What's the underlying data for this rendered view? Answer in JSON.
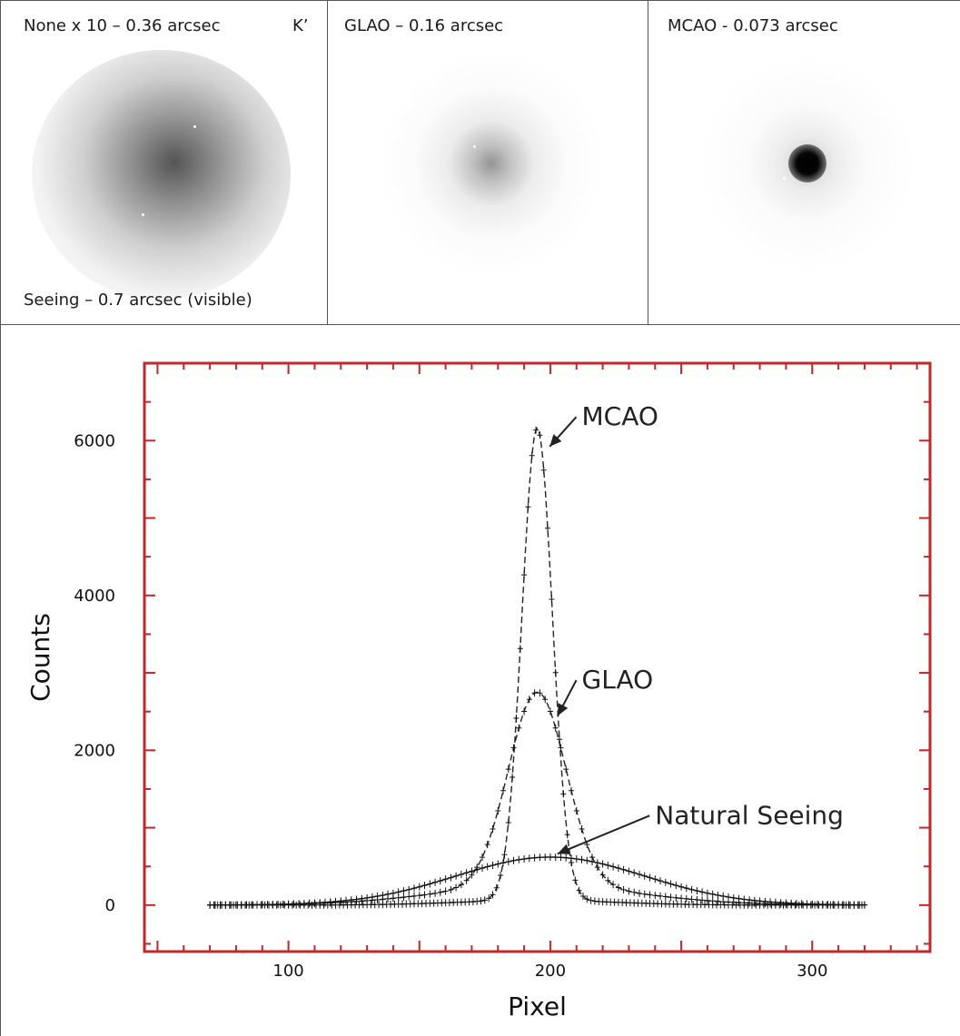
{
  "panels": {
    "none": {
      "caption": "None x 10 – 0.36 arcsec",
      "band": "K’",
      "footer": "Seeing – 0.7 arcsec (visible)"
    },
    "glao": {
      "caption": "GLAO – 0.16 arcsec"
    },
    "mcao": {
      "caption": "MCAO - 0.073 arcsec"
    }
  },
  "chart_data": {
    "type": "line",
    "xlabel": "Pixel",
    "ylabel": "Counts",
    "xlim": [
      45,
      345
    ],
    "ylim": [
      -600,
      7000
    ],
    "x_ticks": [
      100,
      200,
      300
    ],
    "y_ticks": [
      0,
      2000,
      4000,
      6000
    ],
    "frame_color": "#c0282a",
    "series": [
      {
        "name": "MCAO",
        "center": 195,
        "peak": 6100,
        "sigma": 5.8,
        "wing": 60,
        "wing_sigma": 30
      },
      {
        "name": "GLAO",
        "center": 195,
        "peak": 2500,
        "sigma": 11,
        "wing": 250,
        "wing_sigma": 38
      },
      {
        "name": "Natural Seeing",
        "center": 200,
        "peak": 620,
        "sigma": 36,
        "wing": 0,
        "wing_sigma": 1
      }
    ],
    "annotations": [
      {
        "text": "MCAO",
        "x": 212,
        "y": 6200
      },
      {
        "text": "GLAO",
        "x": 212,
        "y": 2800
      },
      {
        "text": "Natural Seeing",
        "x": 240,
        "y": 1050
      }
    ]
  }
}
